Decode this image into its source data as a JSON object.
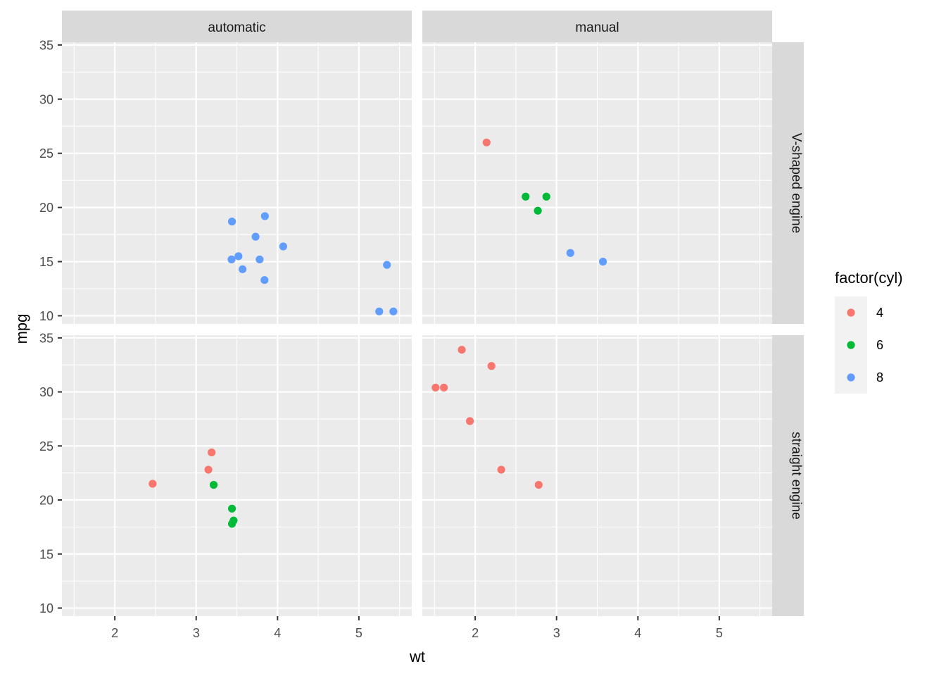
{
  "chart_data": {
    "type": "scatter",
    "xlabel": "wt",
    "ylabel": "mpg",
    "xlim": [
      1.35,
      5.65
    ],
    "ylim": [
      9.25,
      35.25
    ],
    "x_ticks": [
      2,
      3,
      4,
      5
    ],
    "y_ticks": [
      10,
      15,
      20,
      25,
      30,
      35
    ],
    "grid": true,
    "col_facet_labels": [
      "automatic",
      "manual"
    ],
    "row_facet_labels": [
      "V-shaped engine",
      "straight engine"
    ],
    "legend": {
      "title": "factor(cyl)",
      "position": "right",
      "items": [
        {
          "label": "4",
          "color": "#F8766D"
        },
        {
          "label": "6",
          "color": "#00BA38"
        },
        {
          "label": "8",
          "color": "#619CFF"
        }
      ]
    },
    "panels": [
      {
        "col": "automatic",
        "row": "V-shaped engine",
        "points": [
          {
            "x": 3.44,
            "y": 18.7,
            "cyl": "8"
          },
          {
            "x": 3.57,
            "y": 14.3,
            "cyl": "8"
          },
          {
            "x": 4.07,
            "y": 16.4,
            "cyl": "8"
          },
          {
            "x": 3.73,
            "y": 17.3,
            "cyl": "8"
          },
          {
            "x": 3.78,
            "y": 15.2,
            "cyl": "8"
          },
          {
            "x": 5.25,
            "y": 10.4,
            "cyl": "8"
          },
          {
            "x": 5.424,
            "y": 10.4,
            "cyl": "8"
          },
          {
            "x": 5.345,
            "y": 14.7,
            "cyl": "8"
          },
          {
            "x": 3.52,
            "y": 15.5,
            "cyl": "8"
          },
          {
            "x": 3.435,
            "y": 15.2,
            "cyl": "8"
          },
          {
            "x": 3.84,
            "y": 13.3,
            "cyl": "8"
          },
          {
            "x": 3.845,
            "y": 19.2,
            "cyl": "8"
          }
        ]
      },
      {
        "col": "manual",
        "row": "V-shaped engine",
        "points": [
          {
            "x": 2.14,
            "y": 26.0,
            "cyl": "4"
          },
          {
            "x": 2.62,
            "y": 21.0,
            "cyl": "6"
          },
          {
            "x": 2.875,
            "y": 21.0,
            "cyl": "6"
          },
          {
            "x": 2.77,
            "y": 19.7,
            "cyl": "6"
          },
          {
            "x": 3.17,
            "y": 15.8,
            "cyl": "8"
          },
          {
            "x": 3.57,
            "y": 15.0,
            "cyl": "8"
          }
        ]
      },
      {
        "col": "automatic",
        "row": "straight engine",
        "points": [
          {
            "x": 3.215,
            "y": 21.4,
            "cyl": "6"
          },
          {
            "x": 3.46,
            "y": 18.1,
            "cyl": "6"
          },
          {
            "x": 3.19,
            "y": 24.4,
            "cyl": "4"
          },
          {
            "x": 3.15,
            "y": 22.8,
            "cyl": "4"
          },
          {
            "x": 3.44,
            "y": 19.2,
            "cyl": "6"
          },
          {
            "x": 3.44,
            "y": 17.8,
            "cyl": "6"
          },
          {
            "x": 2.465,
            "y": 21.5,
            "cyl": "4"
          }
        ]
      },
      {
        "col": "manual",
        "row": "straight engine",
        "points": [
          {
            "x": 2.32,
            "y": 22.8,
            "cyl": "4"
          },
          {
            "x": 2.2,
            "y": 32.4,
            "cyl": "4"
          },
          {
            "x": 1.615,
            "y": 30.4,
            "cyl": "4"
          },
          {
            "x": 1.835,
            "y": 33.9,
            "cyl": "4"
          },
          {
            "x": 1.935,
            "y": 27.3,
            "cyl": "4"
          },
          {
            "x": 1.513,
            "y": 30.4,
            "cyl": "4"
          },
          {
            "x": 2.78,
            "y": 21.4,
            "cyl": "4"
          }
        ]
      }
    ]
  }
}
